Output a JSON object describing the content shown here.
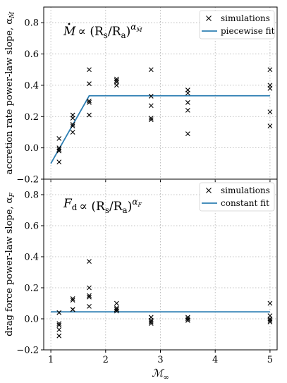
{
  "chart_data": [
    {
      "type": "scatter",
      "annotation": {
        "prefix": "M",
        "relation": "∝ (R",
        "sub1": "s",
        "mid": "/R",
        "sub2": "a",
        "close": ")",
        "exponent_base": "α",
        "exponent_sub": "Ṁ"
      },
      "ylabel": "accretion rate power-law slope, α",
      "ylabel_sub": "Ṁ",
      "ylim": [
        -0.2,
        0.9
      ],
      "xlim": [
        0.87,
        5.13
      ],
      "yticks": [
        -0.2,
        0.0,
        0.2,
        0.4,
        0.6,
        0.8
      ],
      "ytick_labels": [
        "−0.2",
        "0.0",
        "0.2",
        "0.4",
        "0.6",
        "0.8"
      ],
      "legend": {
        "position": "top-right",
        "entries": [
          "simulations",
          "piecewise fit"
        ]
      },
      "series": [
        {
          "name": "simulations",
          "kind": "scatter",
          "marker": "x",
          "points": [
            [
              1.15,
              0.06
            ],
            [
              1.15,
              0.0
            ],
            [
              1.15,
              -0.01
            ],
            [
              1.15,
              -0.02
            ],
            [
              1.15,
              -0.09
            ],
            [
              1.4,
              0.21
            ],
            [
              1.4,
              0.19
            ],
            [
              1.4,
              0.15
            ],
            [
              1.4,
              0.14
            ],
            [
              1.4,
              0.1
            ],
            [
              1.7,
              0.5
            ],
            [
              1.7,
              0.41
            ],
            [
              1.7,
              0.3
            ],
            [
              1.7,
              0.29
            ],
            [
              1.7,
              0.21
            ],
            [
              2.2,
              0.44
            ],
            [
              2.2,
              0.43
            ],
            [
              2.2,
              0.42
            ],
            [
              2.2,
              0.4
            ],
            [
              2.83,
              0.5
            ],
            [
              2.83,
              0.33
            ],
            [
              2.83,
              0.27
            ],
            [
              2.83,
              0.19
            ],
            [
              2.83,
              0.18
            ],
            [
              3.5,
              0.37
            ],
            [
              3.5,
              0.35
            ],
            [
              3.5,
              0.29
            ],
            [
              3.5,
              0.24
            ],
            [
              3.5,
              0.09
            ],
            [
              5.0,
              0.5
            ],
            [
              5.0,
              0.4
            ],
            [
              5.0,
              0.38
            ],
            [
              5.0,
              0.23
            ],
            [
              5.0,
              0.14
            ]
          ]
        },
        {
          "name": "piecewise fit",
          "kind": "line",
          "color": "#2e7fb3",
          "x": [
            1.0,
            1.7,
            5.0
          ],
          "y": [
            -0.1,
            0.333,
            0.333
          ]
        }
      ]
    },
    {
      "type": "scatter",
      "annotation": {
        "prefix": "F",
        "prefix_sub": "d",
        "relation": "∝ (R",
        "sub1": "s",
        "mid": "/R",
        "sub2": "a",
        "close": ")",
        "exponent_base": "α",
        "exponent_sub": "F"
      },
      "ylabel": "drag force power-law slope, α",
      "ylabel_sub": "F",
      "xlabel": "ℳ",
      "xlabel_sub": "∞",
      "ylim": [
        -0.2,
        0.9
      ],
      "xlim": [
        0.87,
        5.13
      ],
      "xticks": [
        1,
        2,
        3,
        4,
        5
      ],
      "xtick_labels": [
        "1",
        "2",
        "3",
        "4",
        "5"
      ],
      "yticks": [
        -0.2,
        0.0,
        0.2,
        0.4,
        0.6,
        0.8
      ],
      "ytick_labels": [
        "−0.2",
        "0.0",
        "0.2",
        "0.4",
        "0.6",
        "0.8"
      ],
      "legend": {
        "position": "top-right",
        "entries": [
          "simulations",
          "constant fit"
        ]
      },
      "series": [
        {
          "name": "simulations",
          "kind": "scatter",
          "marker": "x",
          "points": [
            [
              1.15,
              0.04
            ],
            [
              1.15,
              -0.03
            ],
            [
              1.15,
              -0.04
            ],
            [
              1.15,
              -0.07
            ],
            [
              1.15,
              -0.11
            ],
            [
              1.4,
              0.13
            ],
            [
              1.4,
              0.12
            ],
            [
              1.4,
              0.06
            ],
            [
              1.4,
              0.06
            ],
            [
              1.7,
              0.37
            ],
            [
              1.7,
              0.2
            ],
            [
              1.7,
              0.15
            ],
            [
              1.7,
              0.14
            ],
            [
              1.7,
              0.08
            ],
            [
              2.2,
              0.1
            ],
            [
              2.2,
              0.07
            ],
            [
              2.2,
              0.06
            ],
            [
              2.2,
              0.06
            ],
            [
              2.2,
              0.05
            ],
            [
              2.83,
              0.01
            ],
            [
              2.83,
              -0.01
            ],
            [
              2.83,
              -0.02
            ],
            [
              2.83,
              -0.03
            ],
            [
              3.5,
              0.01
            ],
            [
              3.5,
              0.0
            ],
            [
              3.5,
              -0.01
            ],
            [
              3.5,
              -0.01
            ],
            [
              5.0,
              0.1
            ],
            [
              5.0,
              0.02
            ],
            [
              5.0,
              0.0
            ],
            [
              5.0,
              -0.01
            ],
            [
              5.0,
              -0.02
            ]
          ]
        },
        {
          "name": "constant fit",
          "kind": "line",
          "color": "#2e7fb3",
          "x": [
            1.0,
            5.0
          ],
          "y": [
            0.045,
            0.045
          ]
        }
      ]
    }
  ]
}
